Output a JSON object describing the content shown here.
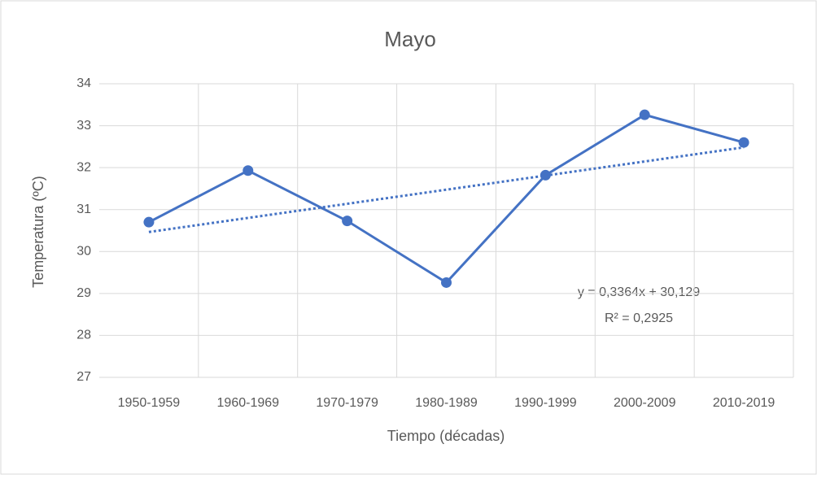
{
  "chart_data": {
    "type": "line",
    "title": "Mayo",
    "x_label": "Tiempo (décadas)",
    "y_label": "Temperatura (ºC)",
    "categories": [
      "1950-1959",
      "1960-1969",
      "1970-1979",
      "1980-1989",
      "1990-1999",
      "2000-2009",
      "2010-2019"
    ],
    "series": [
      {
        "name": "Mayo",
        "color": "#4472c4",
        "values": [
          30.7,
          31.93,
          30.73,
          29.26,
          31.82,
          33.26,
          32.6
        ]
      }
    ],
    "ylim": [
      27,
      34
    ],
    "yticks": [
      27,
      28,
      29,
      30,
      31,
      32,
      33,
      34
    ],
    "grid": true,
    "trendline": {
      "slope": 0.3364,
      "intercept": 30.129,
      "equation": "y = 0,3364x + 30,129",
      "r2_label": "R² = 0,2925",
      "color": "#4472c4"
    }
  }
}
